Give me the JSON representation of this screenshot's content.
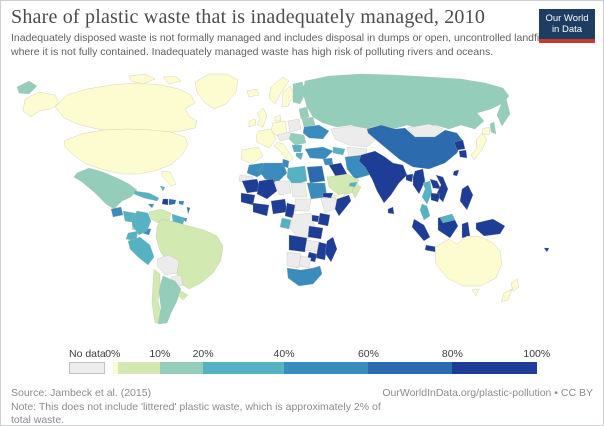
{
  "header": {
    "title": "Share of plastic waste that is inadequately managed, 2010",
    "subtitle": "Inadequately disposed waste is not formally managed and includes disposal in dumps or open, uncontrolled landfills, where it is not fully contained. Inadequately managed waste has high risk of polluting rivers and oceans.",
    "logo": {
      "line1": "Our World",
      "line2": "in Data",
      "bg": "#1d3d63",
      "accent": "#c63a31"
    }
  },
  "legend": {
    "no_data_label": "No data",
    "no_data_color": "#ececec",
    "bins": [
      {
        "id": "0",
        "label": "0%",
        "color": "#fdfbd0",
        "width_pct": 1.2
      },
      {
        "id": "0-10",
        "label": "0-10%",
        "color": "#d2eab1",
        "width_pct": 9.9
      },
      {
        "id": "10-20",
        "label": "10-20%",
        "color": "#94ceba",
        "width_pct": 10.2
      },
      {
        "id": "20-40",
        "label": "20-40%",
        "color": "#54b2c3",
        "width_pct": 19.1
      },
      {
        "id": "40-60",
        "label": "40-60%",
        "color": "#3a8cbe",
        "width_pct": 19.9
      },
      {
        "id": "60-80",
        "label": "60-80%",
        "color": "#2c6bae",
        "width_pct": 19.8
      },
      {
        "id": "80-100",
        "label": "80-100%",
        "color": "#1e3d96",
        "width_pct": 19.9
      }
    ],
    "ticks": [
      {
        "label": "0%",
        "pos_pct": 0
      },
      {
        "label": "10%",
        "pos_pct": 11.1
      },
      {
        "label": "20%",
        "pos_pct": 21.3
      },
      {
        "label": "40%",
        "pos_pct": 40.4
      },
      {
        "label": "60%",
        "pos_pct": 60.3
      },
      {
        "label": "80%",
        "pos_pct": 80.1
      },
      {
        "label": "100%",
        "pos_pct": 100
      }
    ]
  },
  "footer": {
    "source": "Source: Jambeck et al. (2015)",
    "note": "Note: This does not include 'littered' plastic waste, which is approximately 2% of total waste.",
    "link": "OurWorldInData.org/plastic-pollution • CC BY"
  },
  "map": {
    "ocean_color": "#ffffff",
    "border_color": "#b3b3a2"
  },
  "chart_data": {
    "type": "heatmap",
    "subtype": "world-choropleth",
    "title": "Share of plastic waste that is inadequately managed, 2010",
    "unit": "%",
    "bins": [
      "no-data",
      "0",
      "0-10",
      "10-20",
      "20-40",
      "40-60",
      "60-80",
      "80-100"
    ],
    "values": {
      "russia": "10-20",
      "kazakhstan": "no-data",
      "central-asia": "no-data",
      "mongolia": "no-data",
      "afghanistan": "no-data",
      "canada": "0",
      "greenland": "0",
      "united-states": "0",
      "mexico": "10-20",
      "guatemala": "40-60",
      "honduras-nicaragua": "20-40",
      "costa-rica": "10-20",
      "panama": "40-60",
      "cuba": "20-40",
      "bahamas": "20-40",
      "jamaica": "40-60",
      "haiti": "80-100",
      "dominican-republic": "60-80",
      "puerto-rico": "40-60",
      "trinidad-tobago": "40-60",
      "lesser-antilles": "60-80",
      "venezuela": "0-10",
      "guyana-suriname": "20-40",
      "colombia": "20-40",
      "ecuador": "20-40",
      "peru": "20-40",
      "brazil": "0-10",
      "bolivia": "no-data",
      "paraguay": "no-data",
      "chile": "0-10",
      "argentina": "10-20",
      "uruguay": "0-10",
      "iceland": "0",
      "ireland": "0",
      "united-kingdom": "0",
      "norway": "0",
      "sweden": "0",
      "finland": "10-20",
      "denmark": "0",
      "germany": "0",
      "france": "0",
      "spain-portugal": "0",
      "italy": "0",
      "central-europe": "no-data",
      "poland": "no-data",
      "baltics": "10-20",
      "belarus": "10-20",
      "ukraine": "40-60",
      "romania-hungary": "10-20",
      "balkans": "20-40",
      "greece": "20-40",
      "caucasus": "20-40",
      "turkey": "40-60",
      "syria": "40-60",
      "iraq": "80-100",
      "iran": "40-60",
      "saudi-arabia": "0-10",
      "yemen": "0",
      "oman": "0-10",
      "uae": "20-40",
      "pakistan": "80-100",
      "morocco": "40-60",
      "western-sahara": "no-data",
      "algeria": "40-60",
      "tunisia": "40-60",
      "libya": "20-40",
      "egypt": "60-80",
      "mauritania": "80-100",
      "mali": "80-100",
      "niger": "no-data",
      "chad": "no-data",
      "sudan": "40-60",
      "south-sudan-car": "no-data",
      "ethiopia": "no-data",
      "eritrea": "80-100",
      "somalia": "80-100",
      "senegal-guinea": "80-100",
      "ivory-coast-ghana": "80-100",
      "nigeria": "80-100",
      "cameroon": "80-100",
      "gabon": "20-40",
      "dr-congo": "no-data",
      "uganda": "80-100",
      "kenya": "80-100",
      "tanzania": "80-100",
      "angola": "80-100",
      "zambia": "no-data",
      "zimbabwe": "80-100",
      "mozambique": "80-100",
      "namibia": "no-data",
      "botswana": "no-data",
      "south-africa": "40-60",
      "madagascar": "80-100",
      "china": "60-80",
      "india": "80-100",
      "sri-lanka": "80-100",
      "bangladesh": "80-100",
      "myanmar": "80-100",
      "thailand": "20-40",
      "laos": "80-100",
      "vietnam": "80-100",
      "cambodia": "80-100",
      "malaysia": "20-40",
      "indonesia": "80-100",
      "philippines": "80-100",
      "taiwan": "80-100",
      "north-korea": "80-100",
      "south-korea": "80-100",
      "japan": "0",
      "fiji": "80-100",
      "australia": "0",
      "new-zealand": "0",
      "papua-new-guinea": "80-100"
    }
  }
}
